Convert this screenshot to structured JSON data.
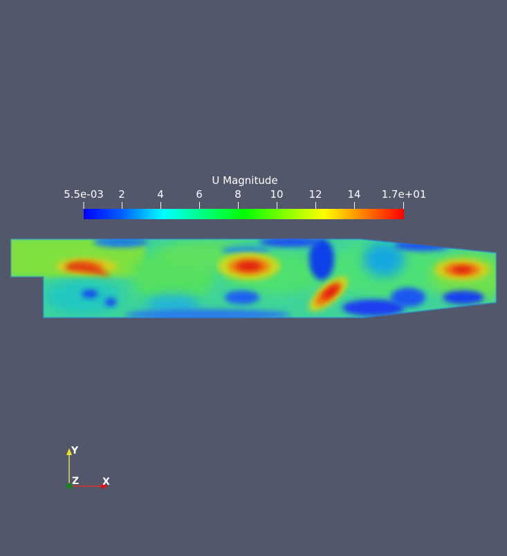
{
  "colorbar": {
    "title": "U Magnitude",
    "ticks": [
      "5.5e-03",
      "2",
      "4",
      "6",
      "8",
      "10",
      "12",
      "14",
      "1.7e+01"
    ],
    "range": [
      0.0055,
      17
    ],
    "colors": [
      "#0000ff",
      "#00ffff",
      "#00ff00",
      "#ffff00",
      "#ff0000"
    ]
  },
  "orientation_axes": {
    "x_label": "X",
    "y_label": "Y",
    "z_label": "Z",
    "x_color": "#ff0000",
    "y_color": "#ffff00",
    "z_color": "#00aa00"
  },
  "background_color": "#52576b"
}
